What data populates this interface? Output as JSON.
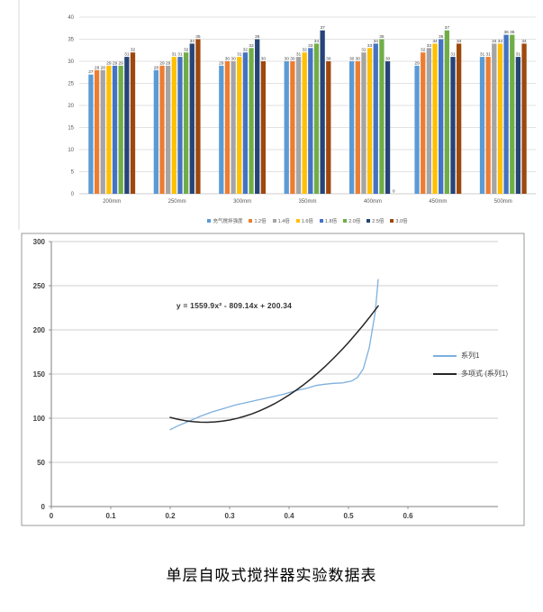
{
  "caption": "单层自吸式搅拌器实验数据表",
  "colors": {
    "grid_light": "#d9d9d9",
    "grid_medium": "#bfbfbf",
    "axis_line": "#7f7f7f",
    "chart_border": "#808080",
    "panel_border": "#d9d9d9"
  },
  "chart_data": [
    {
      "type": "bar",
      "title": "",
      "xlabel": "",
      "ylabel": "",
      "categories": [
        "200mm",
        "250mm",
        "300mm",
        "350mm",
        "400mm",
        "450mm",
        "500mm"
      ],
      "series": [
        {
          "name": "充气搅拌强度",
          "color": "#5B9BD5",
          "values": [
            27,
            28,
            29,
            30,
            30,
            29,
            31
          ]
        },
        {
          "name": "1.2倍",
          "color": "#ED7D31",
          "values": [
            28,
            29,
            30,
            30,
            30,
            32,
            31
          ]
        },
        {
          "name": "1.4倍",
          "color": "#A5A5A5",
          "values": [
            28,
            29,
            30,
            31,
            32,
            33,
            34
          ]
        },
        {
          "name": "1.6倍",
          "color": "#FFC000",
          "values": [
            29,
            31,
            31,
            32,
            33,
            34,
            34
          ]
        },
        {
          "name": "1.8倍",
          "color": "#4472C4",
          "values": [
            29,
            31,
            32,
            33,
            34,
            35,
            36
          ]
        },
        {
          "name": "2.0倍",
          "color": "#70AD47",
          "values": [
            29,
            32,
            33,
            34,
            35,
            37,
            36
          ]
        },
        {
          "name": "2.5倍",
          "color": "#264478",
          "values": [
            31,
            34,
            35,
            37,
            30,
            31,
            31
          ]
        },
        {
          "name": "3.0倍",
          "color": "#9E480E",
          "values": [
            32,
            35,
            30,
            30,
            0,
            34,
            34
          ]
        }
      ],
      "yticks": [
        0,
        5,
        10,
        15,
        20,
        25,
        30,
        35,
        40
      ],
      "ylim": [
        0,
        40
      ],
      "grid": true,
      "show_value_labels": true,
      "legend_position": "bottom"
    },
    {
      "type": "line",
      "title": "",
      "xlabel": "",
      "ylabel": "",
      "equation": "y = 1559.9x² - 809.14x + 200.34",
      "xticks": [
        0,
        0.1,
        0.2,
        0.3,
        0.4,
        0.5,
        0.6
      ],
      "yticks": [
        0,
        50,
        100,
        150,
        200,
        250,
        300
      ],
      "xlim": [
        0,
        0.6
      ],
      "ylim": [
        0,
        300
      ],
      "grid": true,
      "legend_position": "right",
      "series": [
        {
          "name": "系列1",
          "color": "#7EB0DE",
          "points": [
            [
              0.2,
              87
            ],
            [
              0.215,
              92
            ],
            [
              0.23,
              96
            ],
            [
              0.25,
              102
            ],
            [
              0.27,
              107
            ],
            [
              0.29,
              111
            ],
            [
              0.31,
              115
            ],
            [
              0.33,
              118
            ],
            [
              0.35,
              121
            ],
            [
              0.37,
              124
            ],
            [
              0.39,
              127
            ],
            [
              0.41,
              131
            ],
            [
              0.43,
              134
            ],
            [
              0.445,
              137
            ],
            [
              0.46,
              138.5
            ],
            [
              0.475,
              139.5
            ],
            [
              0.49,
              140
            ],
            [
              0.505,
              142
            ],
            [
              0.515,
              146
            ],
            [
              0.525,
              156
            ],
            [
              0.535,
              180
            ],
            [
              0.545,
              220
            ],
            [
              0.55,
              257
            ]
          ]
        },
        {
          "name": "多项式 (系列1)",
          "color": "#262626",
          "trendline": {
            "a": 1559.9,
            "b": -809.14,
            "c": 200.34,
            "domain": [
              0.2,
              0.55
            ]
          }
        }
      ]
    }
  ]
}
